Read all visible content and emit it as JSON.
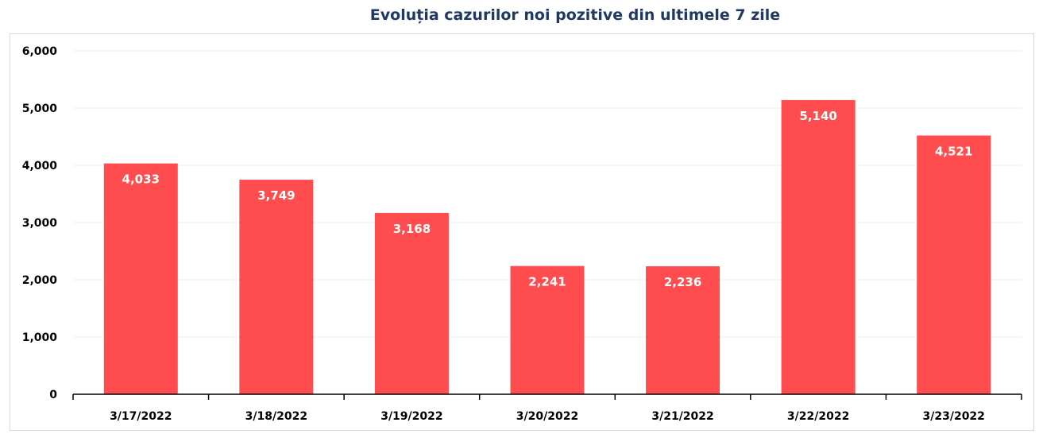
{
  "chart_data": {
    "type": "bar",
    "title": "Evoluția cazurilor noi pozitive din ultimele 7 zile",
    "categories": [
      "3/17/2022",
      "3/18/2022",
      "3/19/2022",
      "3/20/2022",
      "3/21/2022",
      "3/22/2022",
      "3/23/2022"
    ],
    "values": [
      4033,
      3749,
      3168,
      2241,
      2236,
      5140,
      4521
    ],
    "value_labels": [
      "4,033",
      "3,749",
      "3,168",
      "2,241",
      "2,236",
      "5,140",
      "4,521"
    ],
    "y_ticks": [
      0,
      1000,
      2000,
      3000,
      4000,
      5000,
      6000
    ],
    "y_tick_labels": [
      "0",
      "1,000",
      "2,000",
      "3,000",
      "4,000",
      "5,000",
      "6,000"
    ],
    "ylim": [
      0,
      6000
    ],
    "xlabel": "",
    "ylabel": "",
    "grid": true,
    "legend": "none",
    "bar_color": "#ff4d4f",
    "title_color": "#1f3864",
    "grid_color": "#ececec"
  }
}
